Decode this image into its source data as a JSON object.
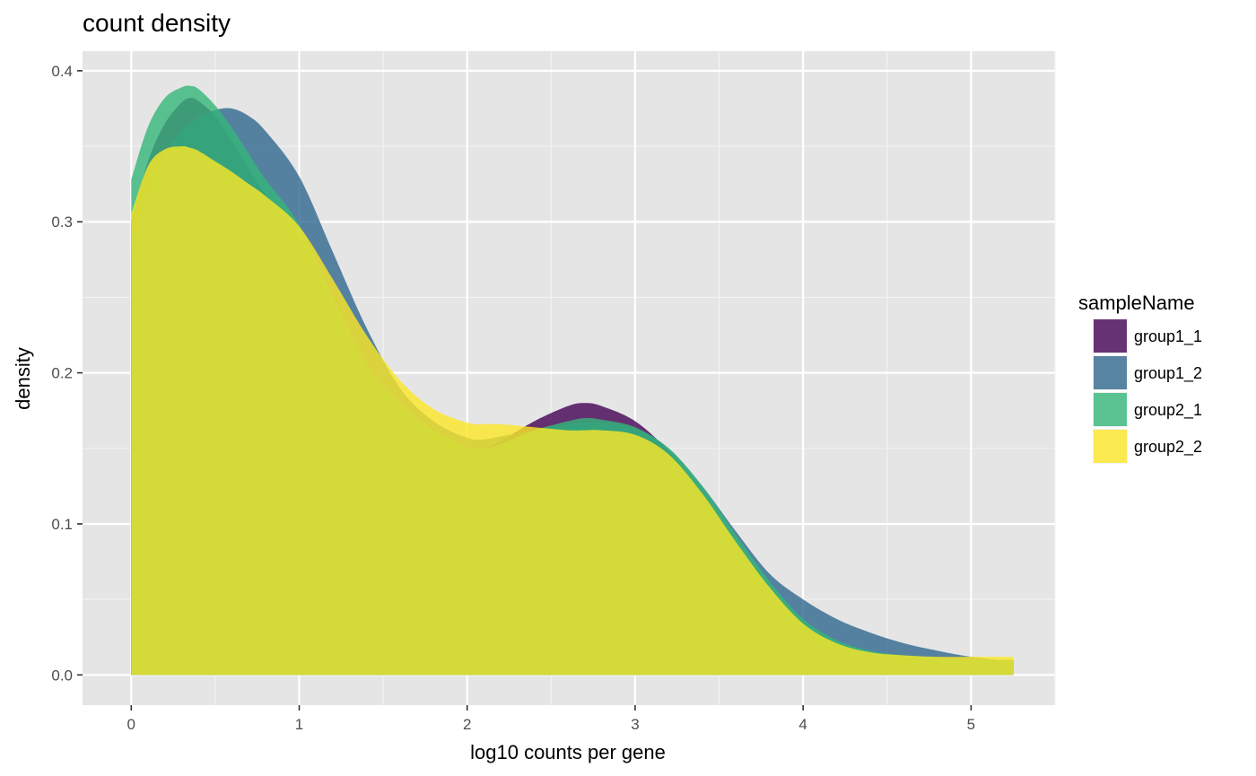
{
  "chart_data": {
    "type": "area",
    "title": "count density",
    "xlabel": "log10 counts per gene",
    "ylabel": "density",
    "xlim": [
      -0.29,
      5.5
    ],
    "ylim": [
      -0.02,
      0.413
    ],
    "x_ticks": [
      0,
      1,
      2,
      3,
      4,
      5
    ],
    "y_ticks": [
      0.0,
      0.1,
      0.2,
      0.3,
      0.4
    ],
    "y_tick_labels": [
      "0.0",
      "0.1",
      "0.2",
      "0.3",
      "0.4"
    ],
    "grid": true,
    "legend": {
      "title": "sampleName",
      "position": "right"
    },
    "x": [
      0,
      0.1,
      0.2,
      0.3,
      0.35,
      0.4,
      0.5,
      0.6,
      0.7,
      0.8,
      1.0,
      1.2,
      1.4,
      1.6,
      1.8,
      2.0,
      2.1,
      2.2,
      2.4,
      2.6,
      2.7,
      2.8,
      3.0,
      3.2,
      3.4,
      3.6,
      3.8,
      4.0,
      4.2,
      4.4,
      4.6,
      4.8,
      5.0,
      5.25
    ],
    "series": [
      {
        "name": "group1_1",
        "color": "#440154",
        "values": [
          0.3,
          0.34,
          0.365,
          0.379,
          0.382,
          0.38,
          0.37,
          0.353,
          0.335,
          0.318,
          0.287,
          0.245,
          0.206,
          0.178,
          0.159,
          0.15,
          0.15,
          0.155,
          0.168,
          0.178,
          0.18,
          0.178,
          0.168,
          0.148,
          0.12,
          0.088,
          0.057,
          0.033,
          0.02,
          0.014,
          0.012,
          0.011,
          0.01,
          0.01
        ]
      },
      {
        "name": "group1_2",
        "color": "#31688e",
        "values": [
          0.28,
          0.32,
          0.345,
          0.36,
          0.365,
          0.369,
          0.374,
          0.375,
          0.37,
          0.36,
          0.33,
          0.28,
          0.23,
          0.19,
          0.168,
          0.157,
          0.156,
          0.158,
          0.162,
          0.166,
          0.167,
          0.167,
          0.163,
          0.15,
          0.125,
          0.095,
          0.067,
          0.05,
          0.037,
          0.028,
          0.021,
          0.016,
          0.012,
          0.009
        ]
      },
      {
        "name": "group2_1",
        "color": "#35b779",
        "values": [
          0.328,
          0.363,
          0.382,
          0.389,
          0.39,
          0.388,
          0.377,
          0.362,
          0.345,
          0.328,
          0.298,
          0.25,
          0.206,
          0.18,
          0.162,
          0.151,
          0.15,
          0.153,
          0.162,
          0.168,
          0.17,
          0.169,
          0.164,
          0.15,
          0.125,
          0.093,
          0.062,
          0.037,
          0.023,
          0.016,
          0.013,
          0.011,
          0.01,
          0.01
        ]
      },
      {
        "name": "group2_2",
        "color": "#fde725",
        "values": [
          0.305,
          0.337,
          0.348,
          0.35,
          0.349,
          0.347,
          0.34,
          0.333,
          0.325,
          0.317,
          0.297,
          0.262,
          0.225,
          0.195,
          0.176,
          0.167,
          0.166,
          0.166,
          0.164,
          0.162,
          0.162,
          0.162,
          0.159,
          0.146,
          0.12,
          0.088,
          0.058,
          0.034,
          0.021,
          0.015,
          0.013,
          0.012,
          0.012,
          0.012
        ]
      }
    ]
  }
}
